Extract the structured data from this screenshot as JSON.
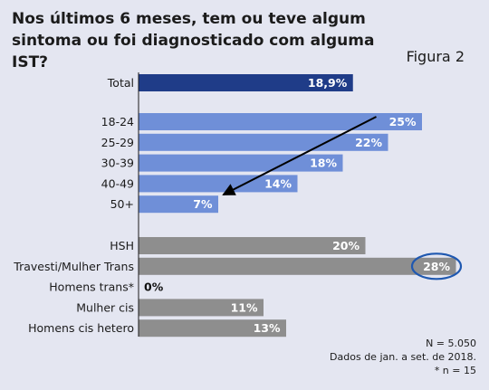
{
  "header": {
    "title": "Nos últimos 6 meses, tem ou teve algum sintoma ou foi diagnosticado com alguma IST?",
    "figure_label": "Figura 2"
  },
  "notes": {
    "n": "N = 5.050",
    "period": "Dados de jan. a set. de 2018.",
    "footnote": "* n = 15"
  },
  "colors": {
    "total": "#1f3c88",
    "age": "#6f8fd8",
    "group": "#8e8e8e",
    "highlight": "#1f58b0",
    "value_light": "#ffffff",
    "value_dark": "#111111"
  },
  "chart_data": {
    "type": "bar",
    "orientation": "horizontal",
    "xlim": [
      0,
      30
    ],
    "groups": [
      {
        "categories": [
          "Total"
        ],
        "values": [
          18.9
        ],
        "labels": [
          "18,9%"
        ],
        "color": "total"
      },
      {
        "categories": [
          "18-24",
          "25-29",
          "30-39",
          "40-49",
          "50+"
        ],
        "values": [
          25,
          22,
          18,
          14,
          7
        ],
        "labels": [
          "25%",
          "22%",
          "18%",
          "14%",
          "7%"
        ],
        "color": "age"
      },
      {
        "categories": [
          "HSH",
          "Travesti/Mulher Trans",
          "Homens trans*",
          "Mulher cis",
          "Homens cis hetero"
        ],
        "values": [
          20,
          28,
          0,
          11,
          13
        ],
        "labels": [
          "20%",
          "28%",
          "0%",
          "11%",
          "13%"
        ],
        "color": "group"
      }
    ],
    "highlighted": "Travesti/Mulher Trans",
    "annotation": "arrow from 18-24 bar to 50+ bar indicating decreasing trend with age"
  }
}
